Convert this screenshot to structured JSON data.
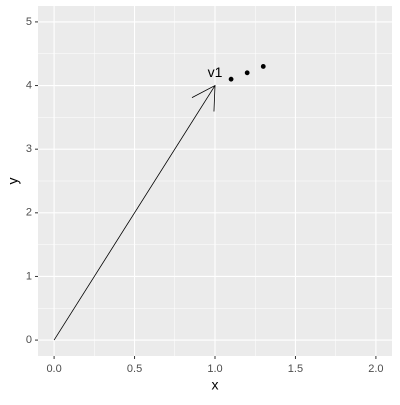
{
  "chart_data": {
    "type": "scatter",
    "x_label": "x",
    "y_label": "y",
    "series": [
      {
        "color": "#000000",
        "x": [
          1.1,
          1.2,
          1.3
        ],
        "values": [
          4.1,
          4.2,
          4.3
        ]
      }
    ],
    "segments": [
      {
        "x": [
          0,
          1
        ],
        "y": [
          0,
          4
        ],
        "label": "v1",
        "arrow": true,
        "color": "#000000"
      }
    ],
    "xlim": [
      -0.1,
      2.1
    ],
    "ylim": [
      -0.25,
      5.25
    ],
    "xticks": [
      {
        "value": 0,
        "label": "0.0"
      },
      0.5,
      {
        "value": 1,
        "label": "1.0"
      },
      1.5,
      {
        "value": 2,
        "label": "2.0"
      }
    ],
    "yticks": [
      0,
      1,
      2,
      3,
      4,
      5
    ],
    "grid": true,
    "minor_grid": true,
    "panel_color": "#EBEBEB"
  }
}
